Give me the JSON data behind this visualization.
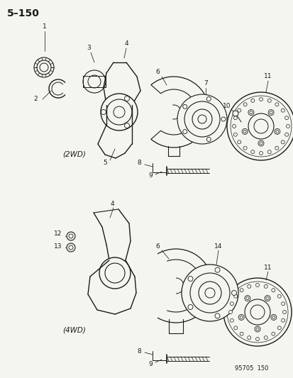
{
  "title": "5–150",
  "background_color": "#f5f5f0",
  "line_color": "#1a1a1a",
  "label_2wd": "(2WD)",
  "label_4wd": "(4WD)",
  "footer": "95705  150",
  "fig_width": 4.14,
  "fig_height": 5.33,
  "dpi": 100,
  "part_numbers_2wd": [
    "1",
    "2",
    "3",
    "4",
    "5",
    "6",
    "7",
    "8",
    "9",
    "10",
    "11"
  ],
  "part_numbers_4wd": [
    "4",
    "6",
    "8",
    "9",
    "11",
    "12",
    "13",
    "14"
  ]
}
